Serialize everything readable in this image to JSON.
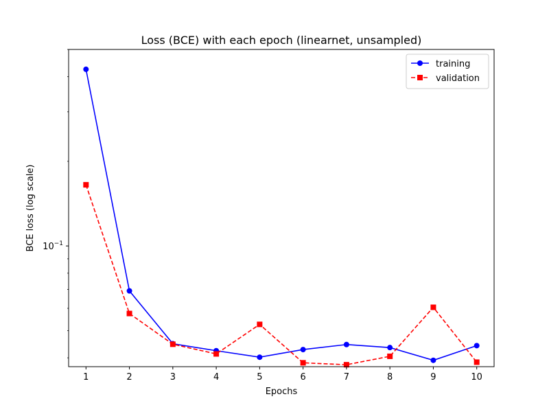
{
  "chart_data": {
    "type": "line",
    "title": "Loss (BCE) with each epoch (linearnet, unsampled)",
    "xlabel": "Epochs",
    "ylabel": "BCE loss (log scale)",
    "yscale": "log",
    "grid": false,
    "legend_position": "top-right",
    "x": [
      1,
      2,
      3,
      4,
      5,
      6,
      7,
      8,
      9,
      10
    ],
    "xlim": [
      0.6,
      10.4
    ],
    "ylim": [
      0.0372,
      0.5
    ],
    "y_tick_labels": [
      {
        "value": 0.1,
        "base": "10",
        "exponent": "−1"
      }
    ],
    "series": [
      {
        "name": "training",
        "color": "#0000ff",
        "line_style": "solid",
        "marker": "circle",
        "values": [
          0.425,
          0.0692,
          0.0449,
          0.0424,
          0.0402,
          0.0428,
          0.0446,
          0.0435,
          0.0392,
          0.0442
        ]
      },
      {
        "name": "validation",
        "color": "#ff0000",
        "line_style": "dashed",
        "marker": "square",
        "values": [
          0.165,
          0.0575,
          0.0447,
          0.0413,
          0.0526,
          0.0384,
          0.0378,
          0.0405,
          0.0605,
          0.0386
        ]
      }
    ]
  }
}
